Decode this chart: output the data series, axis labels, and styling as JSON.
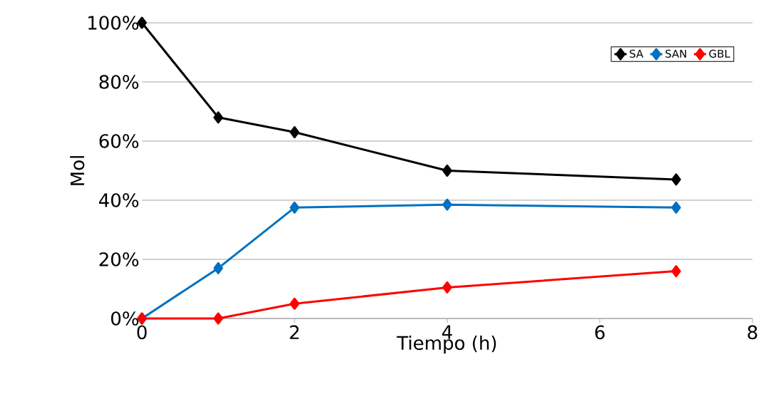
{
  "chart_data": {
    "type": "line",
    "xlabel": "Tiempo (h)",
    "ylabel": "Mol",
    "x": [
      0,
      1,
      2,
      4,
      7
    ],
    "series": [
      {
        "name": "SA",
        "color": "#000000",
        "values": [
          100,
          68,
          63,
          50,
          47
        ]
      },
      {
        "name": "SAN",
        "color": "#0070c0",
        "values": [
          0,
          17,
          37.5,
          38.5,
          37.5
        ]
      },
      {
        "name": "GBL",
        "color": "#ff0000",
        "values": [
          0,
          0,
          5,
          10.5,
          16
        ]
      }
    ],
    "xlim": [
      0,
      8
    ],
    "xticks": [
      0,
      2,
      4,
      6,
      8
    ],
    "ylim": [
      0,
      100
    ],
    "yticks": [
      {
        "value": 0,
        "label": "0%"
      },
      {
        "value": 20,
        "label": "20%"
      },
      {
        "value": 40,
        "label": "40%"
      },
      {
        "value": 60,
        "label": "60%"
      },
      {
        "value": 80,
        "label": "80%"
      },
      {
        "value": 100,
        "label": "100%"
      }
    ],
    "grid": "y",
    "legend": "top right",
    "marker": "diamond",
    "line_style": "solid"
  }
}
